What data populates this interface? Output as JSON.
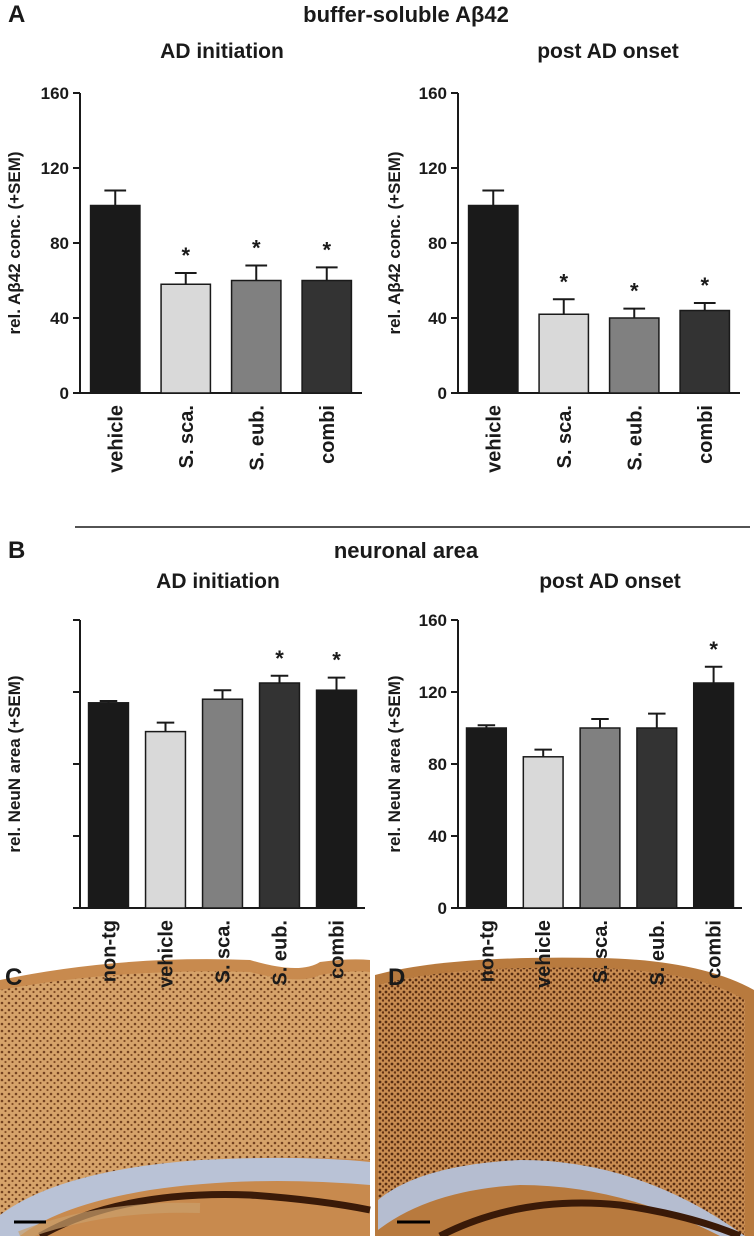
{
  "panel_labels": [
    "A",
    "B",
    "C",
    "D"
  ],
  "section_titles": [
    "buffer-soluble Aβ42",
    "neuronal area"
  ],
  "chart_data": [
    {
      "type": "bar",
      "title": "AD initiation",
      "ylabel": "rel. Aβ42 conc. (+SEM)",
      "categories": [
        "vehicle",
        "S. sca.",
        "S. eub.",
        "combi"
      ],
      "values": [
        100,
        58,
        60,
        60
      ],
      "errors": [
        8,
        6,
        8,
        7
      ],
      "significance": [
        null,
        "*",
        "*",
        "*"
      ],
      "colors": [
        "#1a1a1a",
        "#d9d9d9",
        "#808080",
        "#333333"
      ],
      "ylim": [
        0,
        160
      ],
      "yticks": [
        0,
        40,
        80,
        120,
        160
      ],
      "ytick_labels": true
    },
    {
      "type": "bar",
      "title": "post AD onset",
      "ylabel": "rel. Aβ42 conc. (+SEM)",
      "categories": [
        "vehicle",
        "S. sca.",
        "S. eub.",
        "combi"
      ],
      "values": [
        100,
        42,
        40,
        44
      ],
      "errors": [
        8,
        8,
        5,
        4
      ],
      "significance": [
        null,
        "*",
        "*",
        "*"
      ],
      "colors": [
        "#1a1a1a",
        "#d9d9d9",
        "#808080",
        "#333333"
      ],
      "ylim": [
        0,
        160
      ],
      "yticks": [
        0,
        40,
        80,
        120,
        160
      ],
      "ytick_labels": true
    },
    {
      "type": "bar",
      "title": "AD initiation",
      "ylabel": "rel. NeuN area (+SEM)",
      "categories": [
        "non-tg",
        "vehicle",
        "S. sca.",
        "S. eub.",
        "combi"
      ],
      "values": [
        114,
        98,
        116,
        125,
        121
      ],
      "errors": [
        1,
        5,
        5,
        4,
        7
      ],
      "significance": [
        null,
        null,
        null,
        "*",
        "*"
      ],
      "colors": [
        "#1a1a1a",
        "#d9d9d9",
        "#808080",
        "#333333",
        "#1a1a1a"
      ],
      "ylim": [
        0,
        160
      ],
      "yticks": [
        0,
        40,
        80,
        120,
        160
      ],
      "ytick_labels": false
    },
    {
      "type": "bar",
      "title": "post AD onset",
      "ylabel": "rel. NeuN area (+SEM)",
      "categories": [
        "non-tg",
        "vehicle",
        "S. sca.",
        "S. eub.",
        "combi"
      ],
      "values": [
        100,
        84,
        100,
        100,
        125
      ],
      "errors": [
        1.5,
        4,
        5,
        8,
        9
      ],
      "significance": [
        null,
        null,
        null,
        null,
        "*"
      ],
      "colors": [
        "#1a1a1a",
        "#d9d9d9",
        "#808080",
        "#333333",
        "#1a1a1a"
      ],
      "ylim": [
        0,
        160
      ],
      "yticks": [
        0,
        40,
        80,
        120,
        160
      ],
      "ytick_labels": true
    }
  ]
}
